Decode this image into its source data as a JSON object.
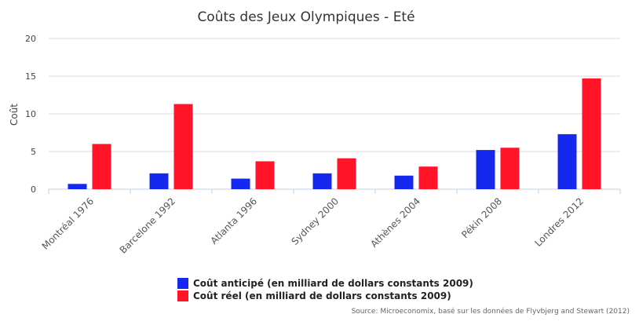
{
  "chart_data": {
    "type": "bar",
    "title": "Coûts des Jeux Olympiques - Eté",
    "ylabel": "Coût",
    "xlabel": "",
    "ylim": [
      0,
      20
    ],
    "yticks": [
      0,
      5,
      10,
      15,
      20
    ],
    "grid": true,
    "legend_position": "bottom",
    "categories": [
      "Montréal 1976",
      "Barcelone 1992",
      "Atlanta 1996",
      "Sydney 2000",
      "Athènes 2004",
      "Pékin 2008",
      "Londres 2012"
    ],
    "series": [
      {
        "name": "Coût anticipé (en milliard de dollars constants 2009)",
        "color": "#1428f0",
        "values": [
          0.7,
          2.1,
          1.4,
          2.1,
          1.8,
          5.2,
          7.3
        ]
      },
      {
        "name": "Coût réel (en milliard de dollars constants 2009)",
        "color": "#ff1428",
        "values": [
          6.0,
          11.3,
          3.7,
          4.1,
          3.0,
          5.5,
          14.7
        ]
      }
    ],
    "source": "Source: Microeconomix, basé sur les données de Flyvbjerg and Stewart (2012)"
  }
}
